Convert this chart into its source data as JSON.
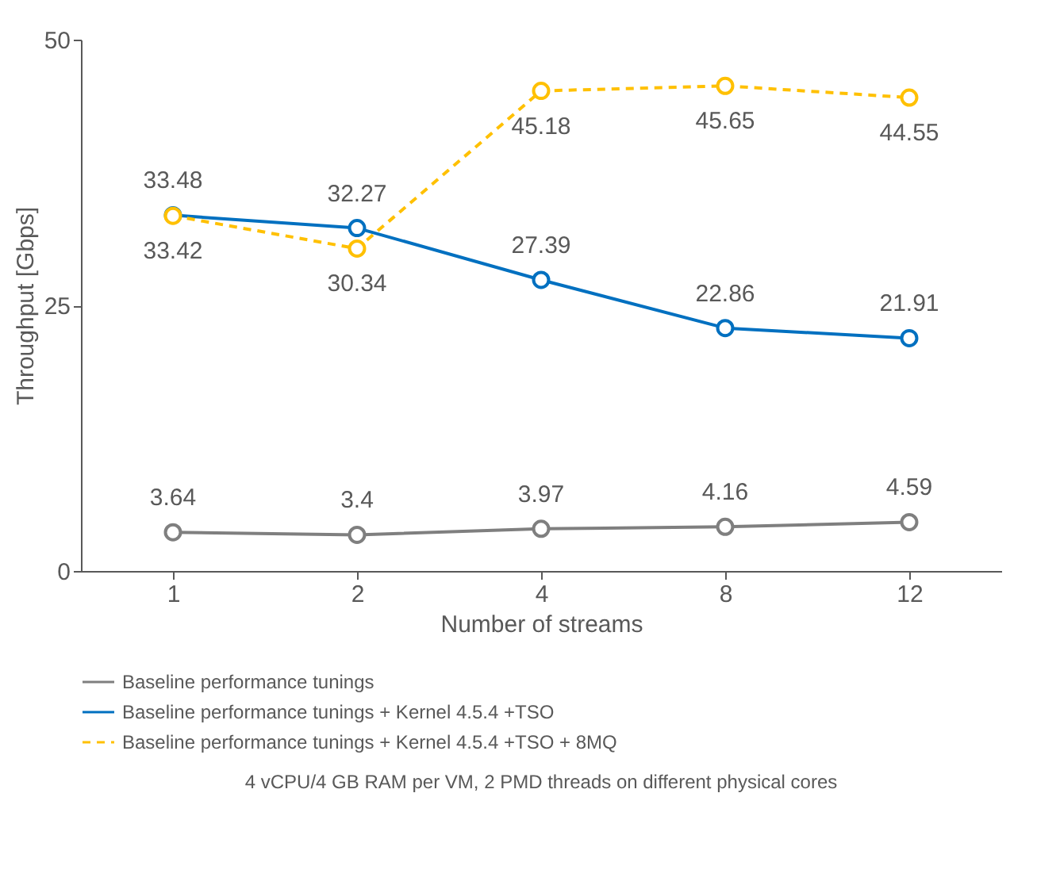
{
  "chart_data": {
    "type": "line",
    "xlabel": "Number of streams",
    "ylabel": "Throughput [Gbps]",
    "categories": [
      "1",
      "2",
      "4",
      "8",
      "12"
    ],
    "series": [
      {
        "name": "Baseline performance tunings",
        "color": "#7f7f7f",
        "line_style": "solid",
        "values": [
          3.64,
          3.4,
          3.97,
          4.16,
          4.59
        ]
      },
      {
        "name": "Baseline performance tunings + Kernel 4.5.4 +TSO",
        "color": "#0070c0",
        "line_style": "solid",
        "values": [
          33.48,
          32.27,
          27.39,
          22.86,
          21.91
        ]
      },
      {
        "name": "Baseline performance tunings + Kernel 4.5.4 +TSO + 8MQ",
        "color": "#ffc000",
        "line_style": "dashed",
        "values": [
          33.42,
          30.34,
          45.18,
          45.65,
          44.55
        ]
      }
    ],
    "ylim": [
      0,
      50
    ],
    "yticks": [
      0,
      25,
      50
    ],
    "grid": false,
    "legend": "bottom",
    "marker": "circle",
    "data_labels": true,
    "annotations": [
      "4 vCPU/4 GB RAM per VM, 2 PMD threads on different physical cores"
    ]
  }
}
